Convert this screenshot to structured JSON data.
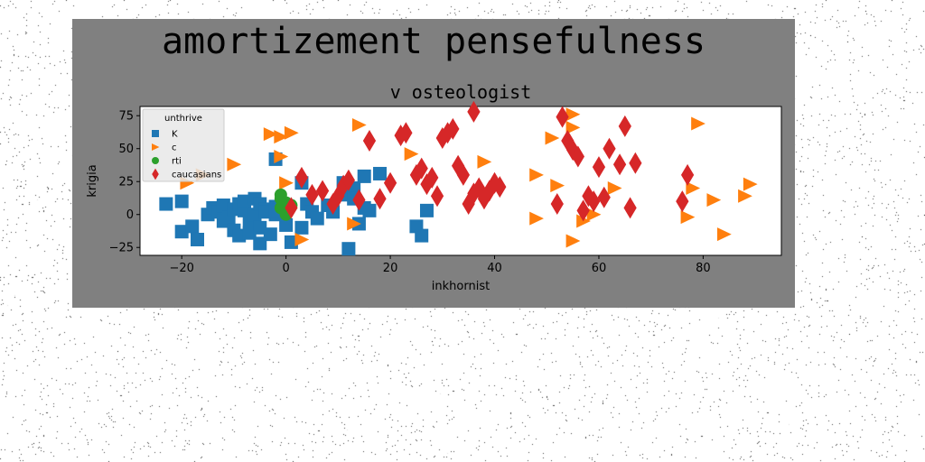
{
  "chart_data": {
    "type": "scatter",
    "suptitle": "amortizement pensefulness",
    "title": "v osteologist",
    "xlabel": "inkhornist",
    "ylabel": "krigia",
    "xlim": [
      -28,
      95
    ],
    "ylim": [
      -31,
      82
    ],
    "xticks": [
      -20,
      0,
      20,
      40,
      60,
      80
    ],
    "yticks": [
      -25,
      0,
      25,
      50,
      75
    ],
    "grid": false,
    "legend": {
      "title": "unthrive",
      "placement": "top-left"
    },
    "series": [
      {
        "name": "K",
        "marker": "square",
        "color": "#1f77b4",
        "points": [
          [
            -23,
            8
          ],
          [
            -20,
            10
          ],
          [
            -20,
            -13
          ],
          [
            -18,
            -9
          ],
          [
            -17,
            -19
          ],
          [
            -15,
            0
          ],
          [
            -14,
            5
          ],
          [
            -13,
            2
          ],
          [
            -12,
            7
          ],
          [
            -12,
            -5
          ],
          [
            -11,
            -2
          ],
          [
            -10,
            4
          ],
          [
            -10,
            -12
          ],
          [
            -9,
            8
          ],
          [
            -9,
            -16
          ],
          [
            -8,
            3
          ],
          [
            -8,
            10
          ],
          [
            -7,
            -7
          ],
          [
            -7,
            -14
          ],
          [
            -6,
            12
          ],
          [
            -6,
            0
          ],
          [
            -5,
            -22
          ],
          [
            -5,
            8
          ],
          [
            -5,
            -10
          ],
          [
            -4,
            4
          ],
          [
            -4,
            2
          ],
          [
            -3,
            -15
          ],
          [
            -2,
            6
          ],
          [
            -2,
            0
          ],
          [
            -2,
            3
          ],
          [
            -2,
            42
          ],
          [
            0,
            -8
          ],
          [
            1,
            -21
          ],
          [
            3,
            -10
          ],
          [
            3,
            24
          ],
          [
            4,
            8
          ],
          [
            5,
            2
          ],
          [
            6,
            -3
          ],
          [
            8,
            7
          ],
          [
            9,
            2
          ],
          [
            11,
            15
          ],
          [
            11,
            24
          ],
          [
            12,
            -26
          ],
          [
            13,
            20
          ],
          [
            13,
            12
          ],
          [
            14,
            -7
          ],
          [
            15,
            5
          ],
          [
            15,
            29
          ],
          [
            16,
            3
          ],
          [
            18,
            31
          ],
          [
            25,
            -9
          ],
          [
            26,
            -16
          ],
          [
            27,
            3
          ]
        ]
      },
      {
        "name": "c",
        "marker": "triangle-right",
        "color": "#ff7f0e",
        "points": [
          [
            -19,
            24
          ],
          [
            -16,
            30
          ],
          [
            -10,
            38
          ],
          [
            -3,
            61
          ],
          [
            -1,
            59
          ],
          [
            1,
            62
          ],
          [
            -1,
            44
          ],
          [
            0,
            24
          ],
          [
            3,
            -19
          ],
          [
            14,
            68
          ],
          [
            13,
            -7
          ],
          [
            24,
            46
          ],
          [
            38,
            40
          ],
          [
            48,
            30
          ],
          [
            48,
            -3
          ],
          [
            51,
            58
          ],
          [
            52,
            22
          ],
          [
            55,
            76
          ],
          [
            55,
            66
          ],
          [
            55,
            -20
          ],
          [
            57,
            -5
          ],
          [
            59,
            0
          ],
          [
            63,
            20
          ],
          [
            77,
            -2
          ],
          [
            78,
            20
          ],
          [
            79,
            69
          ],
          [
            82,
            11
          ],
          [
            84,
            -15
          ],
          [
            88,
            14
          ],
          [
            89,
            23
          ]
        ]
      },
      {
        "name": "rti",
        "marker": "circle",
        "color": "#2ca02c",
        "points": [
          [
            -1,
            12
          ],
          [
            0,
            9
          ],
          [
            -1,
            5
          ],
          [
            0,
            2
          ],
          [
            -1,
            15
          ],
          [
            1,
            7
          ],
          [
            0,
            0
          ]
        ]
      },
      {
        "name": "caucasians",
        "marker": "diamond",
        "color": "#d62728",
        "points": [
          [
            1,
            5
          ],
          [
            3,
            28
          ],
          [
            5,
            15
          ],
          [
            7,
            18
          ],
          [
            9,
            8
          ],
          [
            10,
            14
          ],
          [
            11,
            22
          ],
          [
            12,
            26
          ],
          [
            14,
            11
          ],
          [
            16,
            56
          ],
          [
            18,
            12
          ],
          [
            20,
            24
          ],
          [
            22,
            60
          ],
          [
            23,
            62
          ],
          [
            25,
            30
          ],
          [
            26,
            35
          ],
          [
            27,
            23
          ],
          [
            28,
            28
          ],
          [
            29,
            14
          ],
          [
            30,
            58
          ],
          [
            31,
            62
          ],
          [
            32,
            65
          ],
          [
            33,
            37
          ],
          [
            34,
            30
          ],
          [
            35,
            8
          ],
          [
            36,
            78
          ],
          [
            36,
            16
          ],
          [
            37,
            20
          ],
          [
            38,
            12
          ],
          [
            39,
            18
          ],
          [
            40,
            24
          ],
          [
            41,
            21
          ],
          [
            52,
            8
          ],
          [
            53,
            74
          ],
          [
            54,
            56
          ],
          [
            55,
            49
          ],
          [
            56,
            44
          ],
          [
            57,
            3
          ],
          [
            58,
            14
          ],
          [
            59,
            10
          ],
          [
            60,
            36
          ],
          [
            61,
            13
          ],
          [
            62,
            50
          ],
          [
            64,
            38
          ],
          [
            65,
            67
          ],
          [
            66,
            5
          ],
          [
            67,
            39
          ],
          [
            76,
            10
          ],
          [
            77,
            30
          ]
        ]
      }
    ]
  }
}
